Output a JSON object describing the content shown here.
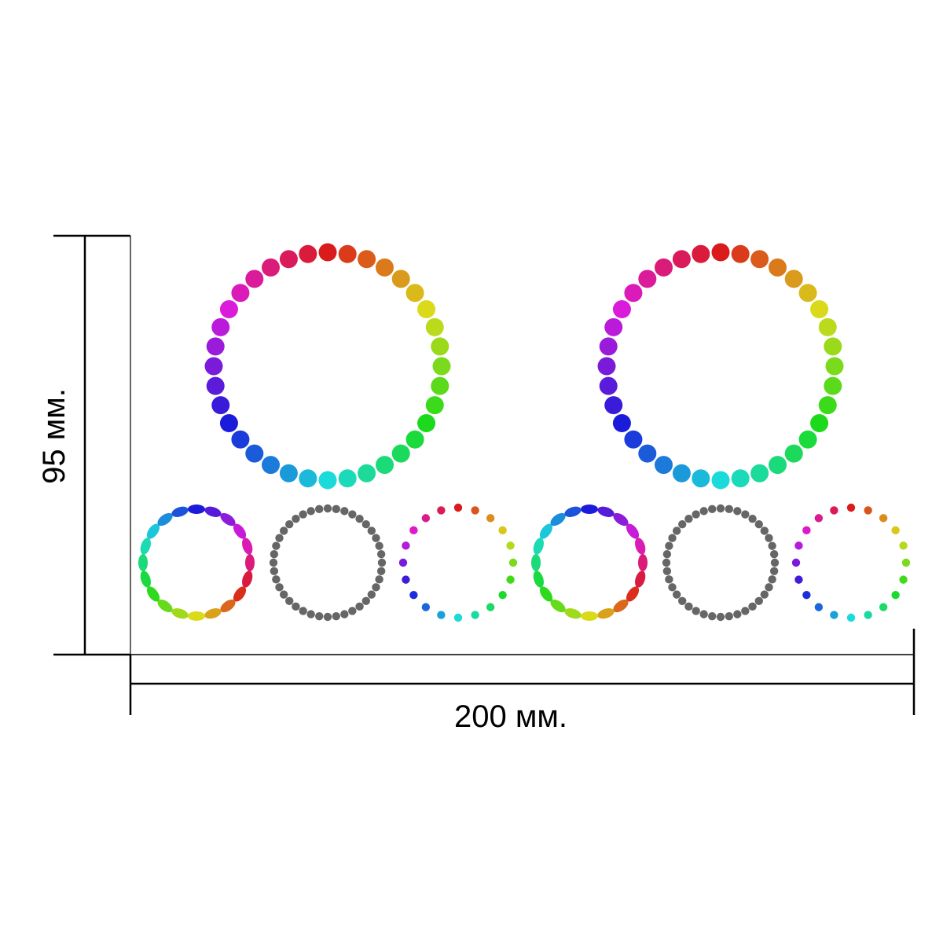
{
  "dimensions": {
    "height_label": "95 мм.",
    "width_label": "200 мм."
  },
  "rings": [
    {
      "id": "large-ring-left",
      "dots": 36,
      "style": "rainbow",
      "dot_shape": "round"
    },
    {
      "id": "large-ring-right",
      "dots": 36,
      "style": "rainbow",
      "dot_shape": "round"
    },
    {
      "id": "small-ring-1",
      "dots": 20,
      "style": "rainbow",
      "dot_shape": "oval"
    },
    {
      "id": "small-ring-2",
      "dots": 40,
      "style": "gray",
      "dot_shape": "round"
    },
    {
      "id": "small-ring-3",
      "dots": 20,
      "style": "rainbow",
      "dot_shape": "small-round"
    },
    {
      "id": "small-ring-4",
      "dots": 20,
      "style": "rainbow",
      "dot_shape": "oval"
    },
    {
      "id": "small-ring-5",
      "dots": 40,
      "style": "gray",
      "dot_shape": "round"
    },
    {
      "id": "small-ring-6",
      "dots": 20,
      "style": "rainbow",
      "dot_shape": "small-round"
    }
  ],
  "colors": {
    "gray_dot": "#666666",
    "dimension_line": "#000000"
  }
}
